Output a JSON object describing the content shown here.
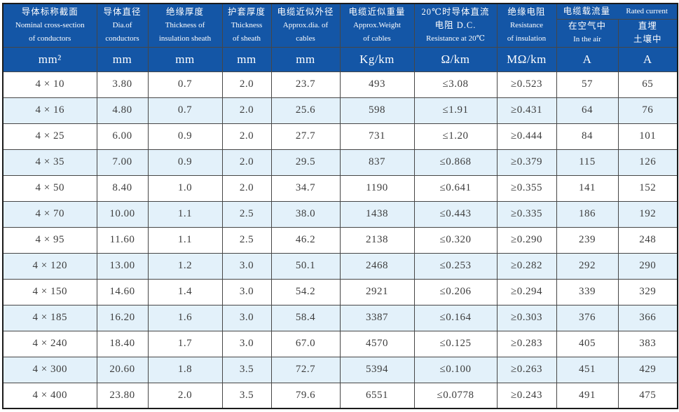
{
  "colors": {
    "header_bg": "#1456a6",
    "stripe_bg": "#e3f1fa",
    "grid_line": "#464646",
    "header_text": "#ffffff",
    "body_text": "#3d3d3d"
  },
  "table": {
    "header": {
      "cols": [
        {
          "lines": [
            "导体标称截面",
            "Nominal cross-section",
            "of conductors"
          ]
        },
        {
          "lines": [
            "导体直径",
            "Dia.of",
            "conductors"
          ]
        },
        {
          "lines": [
            "绝缘厚度",
            "Thickness of",
            "insulation sheath"
          ]
        },
        {
          "lines": [
            "护套厚度",
            "Thickness",
            "of sheath"
          ]
        },
        {
          "lines": [
            "电缆近似外径",
            "Approx.dia. of",
            "cables"
          ]
        },
        {
          "lines": [
            "电缆近似重量",
            "Approx.Weight",
            "of cables"
          ]
        },
        {
          "lines": [
            "20℃时导体直流",
            "电阻 D.C.",
            "Resistance at 20℃"
          ]
        },
        {
          "lines": [
            "绝缘电阻",
            "Resistance",
            "of insulation"
          ]
        }
      ],
      "current_group": {
        "zh": "电缆载流量",
        "en": "Rated current"
      },
      "in_air": {
        "zh": "在空气中",
        "en": "In the air"
      },
      "buried": {
        "zh": "直埋",
        "zh2": "土壤中"
      },
      "units": [
        "mm²",
        "mm",
        "mm",
        "mm",
        "mm",
        "Kg/km",
        "Ω/km",
        "MΩ/km",
        "A",
        "A"
      ]
    },
    "rows": [
      [
        "4 × 10",
        "3.80",
        "0.7",
        "2.0",
        "23.7",
        "493",
        "≤3.08",
        "≥0.523",
        "57",
        "65"
      ],
      [
        "4 × 16",
        "4.80",
        "0.7",
        "2.0",
        "25.6",
        "598",
        "≤1.91",
        "≥0.431",
        "64",
        "76"
      ],
      [
        "4 × 25",
        "6.00",
        "0.9",
        "2.0",
        "27.7",
        "731",
        "≤1.20",
        "≥0.444",
        "84",
        "101"
      ],
      [
        "4 × 35",
        "7.00",
        "0.9",
        "2.0",
        "29.5",
        "837",
        "≤0.868",
        "≥0.379",
        "115",
        "126"
      ],
      [
        "4 × 50",
        "8.40",
        "1.0",
        "2.0",
        "34.7",
        "1190",
        "≤0.641",
        "≥0.355",
        "141",
        "152"
      ],
      [
        "4 × 70",
        "10.00",
        "1.1",
        "2.5",
        "38.0",
        "1438",
        "≤0.443",
        "≥0.335",
        "186",
        "192"
      ],
      [
        "4 × 95",
        "11.60",
        "1.1",
        "2.5",
        "46.2",
        "2138",
        "≤0.320",
        "≥0.290",
        "239",
        "248"
      ],
      [
        "4 × 120",
        "13.00",
        "1.2",
        "3.0",
        "50.1",
        "2468",
        "≤0.253",
        "≥0.282",
        "292",
        "290"
      ],
      [
        "4 × 150",
        "14.60",
        "1.4",
        "3.0",
        "54.2",
        "2921",
        "≤0.206",
        "≥0.294",
        "339",
        "329"
      ],
      [
        "4 × 185",
        "16.20",
        "1.6",
        "3.0",
        "58.4",
        "3387",
        "≤0.164",
        "≥0.303",
        "376",
        "366"
      ],
      [
        "4 × 240",
        "18.40",
        "1.7",
        "3.0",
        "67.0",
        "4570",
        "≤0.125",
        "≥0.283",
        "405",
        "383"
      ],
      [
        "4 × 300",
        "20.60",
        "1.8",
        "3.5",
        "72.7",
        "5394",
        "≤0.100",
        "≥0.263",
        "451",
        "429"
      ],
      [
        "4 × 400",
        "23.80",
        "2.0",
        "3.5",
        "79.6",
        "6551",
        "≤0.0778",
        "≥0.243",
        "491",
        "475"
      ]
    ]
  }
}
